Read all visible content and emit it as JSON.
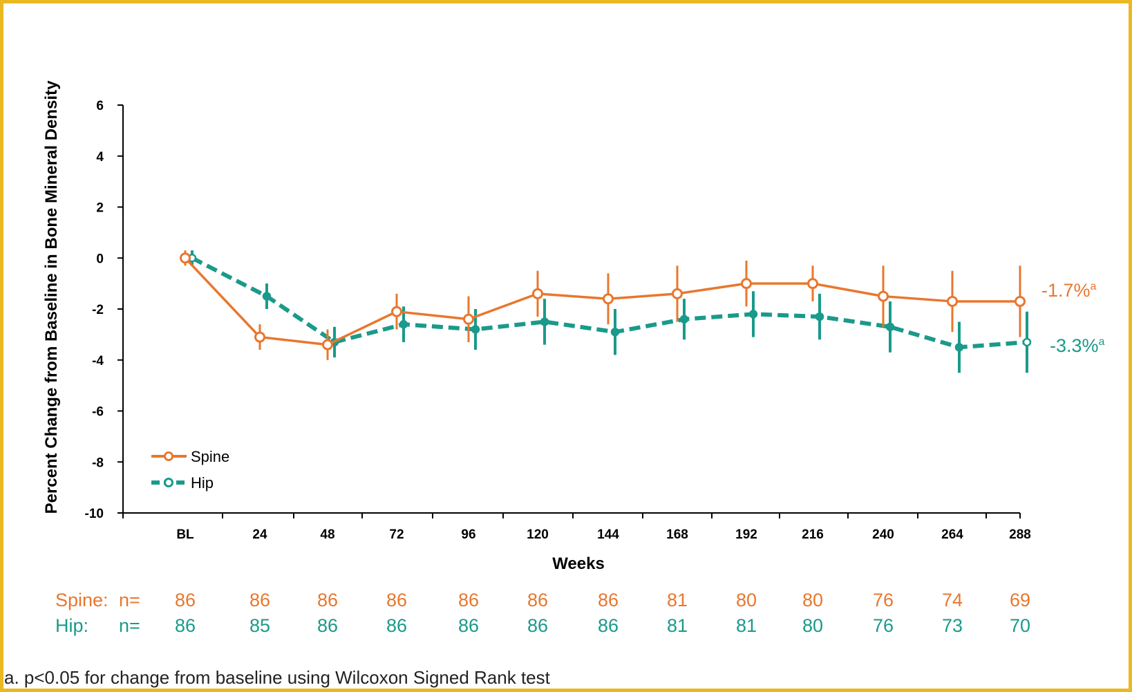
{
  "colors": {
    "spine": "#E8772E",
    "hip": "#1A9A8A",
    "border": "#E8B923"
  },
  "chart_data": {
    "type": "line",
    "xlabel": "Weeks",
    "ylabel": "Percent Change from Baseline in Bone Mineral Density",
    "ylim": [
      -10,
      6
    ],
    "yticks": [
      6,
      4,
      2,
      0,
      -2,
      -4,
      -6,
      -8,
      -10
    ],
    "categories": [
      "BL",
      "24",
      "48",
      "72",
      "96",
      "120",
      "144",
      "168",
      "192",
      "216",
      "240",
      "264",
      "288"
    ],
    "legend_position": "bottom-left",
    "series": [
      {
        "name": "Spine",
        "values": [
          0,
          -3.1,
          -3.4,
          -2.1,
          -2.4,
          -1.4,
          -1.6,
          -1.4,
          -1.0,
          -1.0,
          -1.5,
          -1.7,
          -1.7
        ],
        "error": [
          0.3,
          0.5,
          0.6,
          0.7,
          0.9,
          0.9,
          1.0,
          1.1,
          0.9,
          0.7,
          1.2,
          1.2,
          1.4
        ],
        "end_label": "-1.7%",
        "end_label_sup": "a"
      },
      {
        "name": "Hip",
        "values": [
          0,
          -1.5,
          -3.3,
          -2.6,
          -2.8,
          -2.5,
          -2.9,
          -2.4,
          -2.2,
          -2.3,
          -2.7,
          -3.5,
          -3.3
        ],
        "error": [
          0.3,
          0.5,
          0.6,
          0.7,
          0.8,
          0.9,
          0.9,
          0.8,
          0.9,
          0.9,
          1.0,
          1.0,
          1.2
        ],
        "end_label": "-3.3%",
        "end_label_sup": "a"
      }
    ]
  },
  "n_table": {
    "n_label": "n=",
    "rows": [
      {
        "label": "Spine:",
        "values": [
          "86",
          "86",
          "86",
          "86",
          "86",
          "86",
          "86",
          "81",
          "80",
          "80",
          "76",
          "74",
          "69"
        ]
      },
      {
        "label": "Hip:",
        "values": [
          "86",
          "85",
          "86",
          "86",
          "86",
          "86",
          "86",
          "81",
          "81",
          "80",
          "76",
          "73",
          "70"
        ]
      }
    ]
  },
  "footnote": "a. p<0.05 for change from baseline using Wilcoxon Signed Rank test"
}
